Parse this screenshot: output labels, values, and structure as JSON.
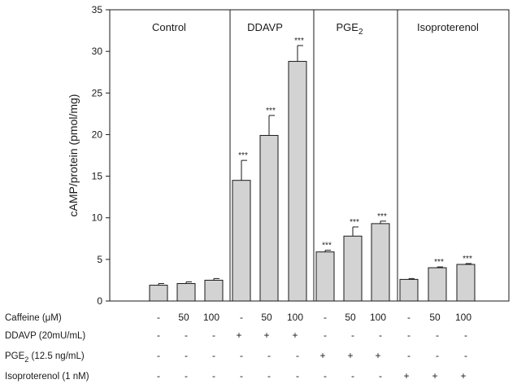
{
  "chart_data": {
    "type": "bar",
    "ylabel": "cAMP/protein (pmol/mg)",
    "ylim": [
      0,
      35
    ],
    "yticks": [
      0,
      5,
      10,
      15,
      20,
      25,
      30,
      35
    ],
    "grid": false,
    "panels": [
      {
        "label": "Control",
        "sub": "",
        "bars": [
          0,
          1,
          2
        ]
      },
      {
        "label": "DDAVP",
        "sub": "",
        "bars": [
          3,
          4,
          5
        ]
      },
      {
        "label": "PGE",
        "sub": "2",
        "bars": [
          6,
          7,
          8
        ]
      },
      {
        "label": "Isoproterenol",
        "sub": "",
        "bars": [
          9,
          10,
          11
        ]
      }
    ],
    "values": [
      1.9,
      2.1,
      2.5,
      14.5,
      19.9,
      28.8,
      5.9,
      7.8,
      9.3,
      2.6,
      4.0,
      4.4
    ],
    "errors": [
      0.2,
      0.2,
      0.2,
      2.4,
      2.4,
      1.9,
      0.2,
      1.1,
      0.3,
      0.1,
      0.1,
      0.1
    ],
    "significance": [
      "",
      "",
      "",
      "***",
      "***",
      "***",
      "***",
      "***",
      "***",
      "",
      "***",
      "***"
    ],
    "bar_color": "#d3d3d3"
  },
  "conditions": [
    {
      "label": "Caffeine (",
      "mu": "μ",
      "after": "M)",
      "sub": "",
      "values": [
        "-",
        "50",
        "100",
        "-",
        "50",
        "100",
        "-",
        "50",
        "100",
        "-",
        "50",
        "100"
      ]
    },
    {
      "label": "DDAVP (20mU/mL)",
      "mu": "",
      "after": "",
      "sub": "",
      "values": [
        "-",
        "-",
        "-",
        "+",
        "+",
        "+",
        "-",
        "-",
        "-",
        "-",
        "-",
        "-"
      ]
    },
    {
      "label": "PGE",
      "mu": "",
      "after": " (12.5 ng/mL)",
      "sub": "2",
      "values": [
        "-",
        "-",
        "-",
        "-",
        "-",
        "-",
        "+",
        "+",
        "+",
        "-",
        "-",
        "-"
      ]
    },
    {
      "label": "Isoproterenol (1 nM)",
      "mu": "",
      "after": "",
      "sub": "",
      "values": [
        "-",
        "-",
        "-",
        "-",
        "-",
        "-",
        "-",
        "-",
        "-",
        "+",
        "+",
        "+"
      ]
    }
  ]
}
